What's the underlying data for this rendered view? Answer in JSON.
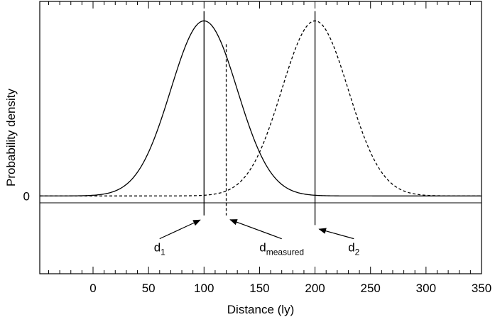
{
  "chart_data": {
    "type": "line",
    "title": "",
    "xlabel": "Distance (ly)",
    "ylabel": "Probability density",
    "xlim": [
      -48,
      350
    ],
    "ylim": [
      -0.4,
      1.0
    ],
    "x_ticks": [
      0,
      50,
      100,
      150,
      200,
      250,
      300,
      350
    ],
    "y_ticks": [
      {
        "value": 0,
        "label": "0"
      }
    ],
    "grid": false,
    "legend": "none",
    "series": [
      {
        "style": "solid",
        "distribution": "gaussian",
        "mean": 100,
        "sigma": 30,
        "peak": 0.9
      },
      {
        "style": "dashed",
        "distribution": "gaussian",
        "mean": 200,
        "sigma": 30,
        "peak": 0.9
      }
    ],
    "markers": [
      {
        "x": 100,
        "style": "solid",
        "y_top": 0.95,
        "y_bottom": -0.1,
        "label": "d",
        "sub": "1",
        "arrow_from": [
          60,
          -0.22
        ]
      },
      {
        "x": 120,
        "style": "dashed",
        "y_top": 0.78,
        "y_bottom": -0.1,
        "label": "d",
        "sub": "measured",
        "arrow_from": [
          170,
          -0.22
        ]
      },
      {
        "x": 200,
        "style": "solid",
        "y_top": 0.95,
        "y_bottom": -0.15,
        "label": "d",
        "sub": "2",
        "arrow_from": [
          235,
          -0.22
        ]
      }
    ]
  }
}
